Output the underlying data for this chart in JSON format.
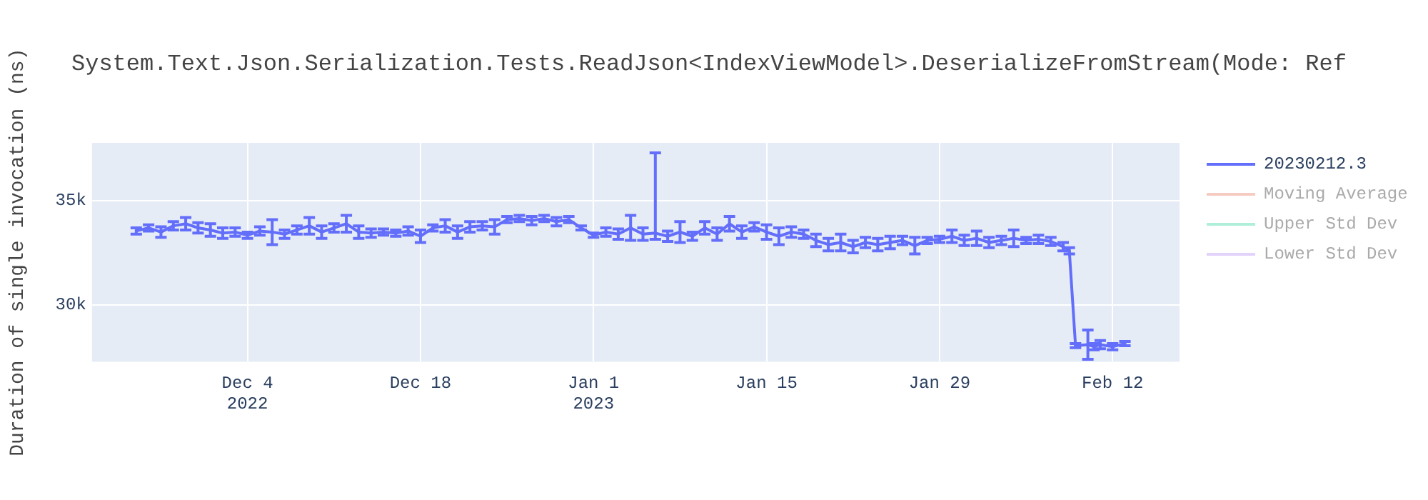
{
  "chart_data": {
    "type": "line",
    "title": "System.Text.Json.Serialization.Tests.ReadJson<IndexViewModel>.DeserializeFromStream(Mode: Ref",
    "ylabel": "Duration of single invocation (ns)",
    "xlim": [
      "2022-11-21T10:00",
      "2023-02-17T10:00"
    ],
    "xticks": [
      {
        "value": "2022-12-04",
        "label": "Dec 4\n2022"
      },
      {
        "value": "2022-12-18",
        "label": "Dec 18"
      },
      {
        "value": "2023-01-01",
        "label": "Jan 1\n2023"
      },
      {
        "value": "2023-01-15",
        "label": "Jan 15"
      },
      {
        "value": "2023-01-29",
        "label": "Jan 29"
      },
      {
        "value": "2023-02-12",
        "label": "Feb 12"
      }
    ],
    "ylim": [
      27280,
      37780
    ],
    "yticks": [
      {
        "value": 30000,
        "label": "30k"
      },
      {
        "value": 35000,
        "label": "35k"
      }
    ],
    "grid": true,
    "legend": "top right",
    "line_style": "solid",
    "series": [
      {
        "name": "20230212.3",
        "color": "#636efa",
        "x": [
          "2022-11-25",
          "2022-11-26",
          "2022-11-27",
          "2022-11-28",
          "2022-11-29",
          "2022-11-30",
          "2022-12-01",
          "2022-12-02",
          "2022-12-03",
          "2022-12-04",
          "2022-12-05",
          "2022-12-06",
          "2022-12-07",
          "2022-12-08",
          "2022-12-09",
          "2022-12-10",
          "2022-12-11",
          "2022-12-12",
          "2022-12-13",
          "2022-12-14",
          "2022-12-15",
          "2022-12-16",
          "2022-12-17",
          "2022-12-18",
          "2022-12-19",
          "2022-12-20",
          "2022-12-21",
          "2022-12-22",
          "2022-12-23",
          "2022-12-24",
          "2022-12-25",
          "2022-12-26",
          "2022-12-27",
          "2022-12-28",
          "2022-12-29",
          "2022-12-30",
          "2022-12-31",
          "2023-01-01",
          "2023-01-02",
          "2023-01-03",
          "2023-01-04",
          "2023-01-05",
          "2023-01-06",
          "2023-01-07",
          "2023-01-08",
          "2023-01-09",
          "2023-01-10",
          "2023-01-11",
          "2023-01-12",
          "2023-01-13",
          "2023-01-14",
          "2023-01-15",
          "2023-01-16",
          "2023-01-17",
          "2023-01-18",
          "2023-01-19",
          "2023-01-20",
          "2023-01-21",
          "2023-01-22",
          "2023-01-23",
          "2023-01-24",
          "2023-01-25",
          "2023-01-26",
          "2023-01-27",
          "2023-01-28",
          "2023-01-29",
          "2023-01-30",
          "2023-01-31",
          "2023-02-01",
          "2023-02-02",
          "2023-02-03",
          "2023-02-04",
          "2023-02-05",
          "2023-02-06",
          "2023-02-07",
          "2023-02-08",
          "2023-02-08T12:00",
          "2023-02-09",
          "2023-02-10",
          "2023-02-10T12:00",
          "2023-02-11",
          "2023-02-12",
          "2023-02-13"
        ],
        "values": [
          33550,
          33700,
          33500,
          33800,
          33900,
          33700,
          33600,
          33450,
          33500,
          33350,
          33550,
          33500,
          33400,
          33600,
          33800,
          33500,
          33700,
          33900,
          33500,
          33450,
          33500,
          33450,
          33550,
          33300,
          33700,
          33800,
          33500,
          33750,
          33800,
          33750,
          34100,
          34150,
          34050,
          34150,
          34000,
          34100,
          33700,
          33350,
          33500,
          33400,
          33700,
          33400,
          33450,
          33300,
          33500,
          33300,
          33700,
          33400,
          33900,
          33500,
          33750,
          33500,
          33300,
          33500,
          33400,
          33100,
          32900,
          33000,
          32800,
          33000,
          32900,
          33000,
          33100,
          32850,
          33100,
          33150,
          33300,
          33100,
          33200,
          33000,
          33100,
          33200,
          33100,
          33150,
          33050,
          32800,
          32600,
          28050,
          28100,
          28000,
          28100,
          28000,
          28150
        ],
        "errors": [
          150,
          150,
          250,
          200,
          300,
          250,
          300,
          250,
          200,
          150,
          200,
          600,
          200,
          200,
          400,
          300,
          200,
          400,
          300,
          200,
          150,
          150,
          200,
          300,
          150,
          300,
          300,
          250,
          200,
          350,
          150,
          150,
          200,
          150,
          200,
          150,
          100,
          100,
          200,
          250,
          600,
          300,
          [
            33150,
            37300
          ],
          250,
          500,
          200,
          300,
          300,
          350,
          300,
          200,
          350,
          400,
          250,
          200,
          300,
          300,
          400,
          300,
          250,
          300,
          300,
          200,
          400,
          150,
          150,
          300,
          250,
          350,
          250,
          200,
          400,
          150,
          200,
          200,
          200,
          150,
          100,
          700,
          150,
          200,
          150,
          100
        ]
      },
      {
        "name": "Moving Average",
        "color": "#ef9a82"
      },
      {
        "name": "Upper Std Dev",
        "color": "#5fe0b5"
      },
      {
        "name": "Lower Std Dev",
        "color": "#c7a5f5"
      }
    ]
  }
}
